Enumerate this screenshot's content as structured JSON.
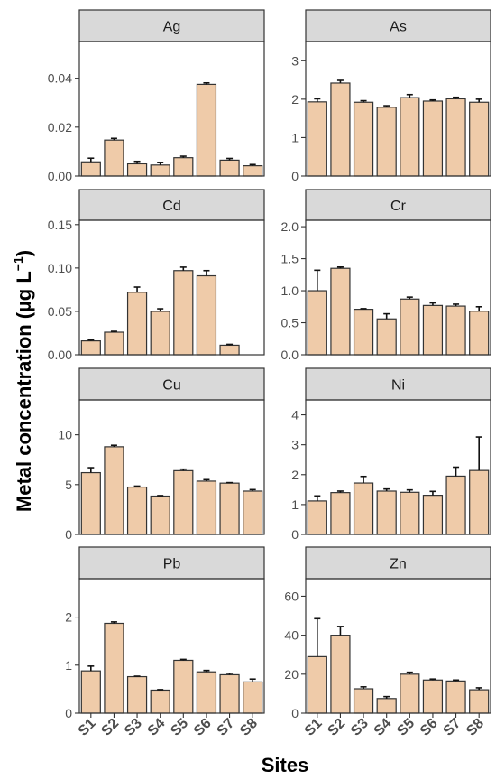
{
  "chart_data": {
    "type": "bar",
    "layout": "faceted-2-columns",
    "xlabel": "Sites",
    "ylabel": "Metal concentration (µg L",
    "ylabel_sup": "−1",
    "ylabel_close": ")",
    "categories": [
      "S1",
      "S2",
      "S3",
      "S4",
      "S5",
      "S6",
      "S7",
      "S8"
    ],
    "bar_color": "#efcba9",
    "strip_color": "#d9d9d9",
    "panels": [
      {
        "name": "Ag",
        "ylim": [
          0,
          0.055
        ],
        "ticks": [
          0,
          0.02,
          0.04
        ],
        "tick_labels": [
          "0.00",
          "0.02",
          "0.04"
        ],
        "values": [
          0.0058,
          0.0147,
          0.005,
          0.0045,
          0.0075,
          0.0375,
          0.0065,
          0.0042
        ],
        "errors": [
          0.0015,
          0.0007,
          0.001,
          0.0011,
          0.0006,
          0.0006,
          0.0007,
          0.0005
        ]
      },
      {
        "name": "As",
        "ylim": [
          0,
          3.5
        ],
        "ticks": [
          0,
          1,
          2,
          3
        ],
        "tick_labels": [
          "0",
          "1",
          "2",
          "3"
        ],
        "values": [
          1.93,
          2.42,
          1.92,
          1.79,
          2.04,
          1.95,
          2.01,
          1.92
        ],
        "errors": [
          0.08,
          0.07,
          0.04,
          0.04,
          0.08,
          0.03,
          0.04,
          0.08
        ]
      },
      {
        "name": "Cd",
        "ylim": [
          0,
          0.155
        ],
        "ticks": [
          0,
          0.05,
          0.1,
          0.15
        ],
        "tick_labels": [
          "0.00",
          "0.05",
          "0.10",
          "0.15"
        ],
        "values": [
          0.016,
          0.026,
          0.072,
          0.05,
          0.097,
          0.091,
          0.011,
          0.0
        ],
        "errors": [
          0.001,
          0.001,
          0.006,
          0.003,
          0.004,
          0.006,
          0.001,
          0.0
        ]
      },
      {
        "name": "Cr",
        "ylim": [
          0,
          2.1
        ],
        "ticks": [
          0,
          0.5,
          1.0,
          1.5,
          2.0
        ],
        "tick_labels": [
          "0.0",
          "0.5",
          "1.0",
          "1.5",
          "2.0"
        ],
        "values": [
          1.0,
          1.35,
          0.71,
          0.56,
          0.87,
          0.77,
          0.76,
          0.68
        ],
        "errors": [
          0.32,
          0.02,
          0.01,
          0.08,
          0.03,
          0.04,
          0.03,
          0.07
        ]
      },
      {
        "name": "Cu",
        "ylim": [
          0,
          13.5
        ],
        "ticks": [
          0,
          5,
          10
        ],
        "tick_labels": [
          "0",
          "5",
          "10"
        ],
        "values": [
          6.2,
          8.8,
          4.75,
          3.85,
          6.4,
          5.35,
          5.15,
          4.35
        ],
        "errors": [
          0.5,
          0.15,
          0.1,
          0.05,
          0.15,
          0.15,
          0.05,
          0.15
        ]
      },
      {
        "name": "Ni",
        "ylim": [
          0,
          4.5
        ],
        "ticks": [
          0,
          1,
          2,
          3,
          4
        ],
        "tick_labels": [
          "0",
          "1",
          "2",
          "3",
          "4"
        ],
        "values": [
          1.12,
          1.4,
          1.72,
          1.45,
          1.41,
          1.31,
          1.95,
          2.14
        ],
        "errors": [
          0.17,
          0.05,
          0.22,
          0.07,
          0.08,
          0.13,
          0.3,
          1.12
        ]
      },
      {
        "name": "Pb",
        "ylim": [
          0,
          2.8
        ],
        "ticks": [
          0,
          1,
          2
        ],
        "tick_labels": [
          "0",
          "1",
          "2"
        ],
        "values": [
          0.88,
          1.87,
          0.76,
          0.48,
          1.1,
          0.86,
          0.8,
          0.65
        ],
        "errors": [
          0.1,
          0.03,
          0.01,
          0.01,
          0.02,
          0.03,
          0.03,
          0.06
        ]
      },
      {
        "name": "Zn",
        "ylim": [
          0,
          69
        ],
        "ticks": [
          0,
          20,
          40,
          60
        ],
        "tick_labels": [
          "0",
          "20",
          "40",
          "60"
        ],
        "values": [
          29,
          40,
          12.5,
          7.5,
          20,
          17,
          16.5,
          12
        ],
        "errors": [
          19.5,
          4.5,
          1,
          1,
          1,
          0.5,
          0.5,
          1
        ]
      }
    ]
  }
}
